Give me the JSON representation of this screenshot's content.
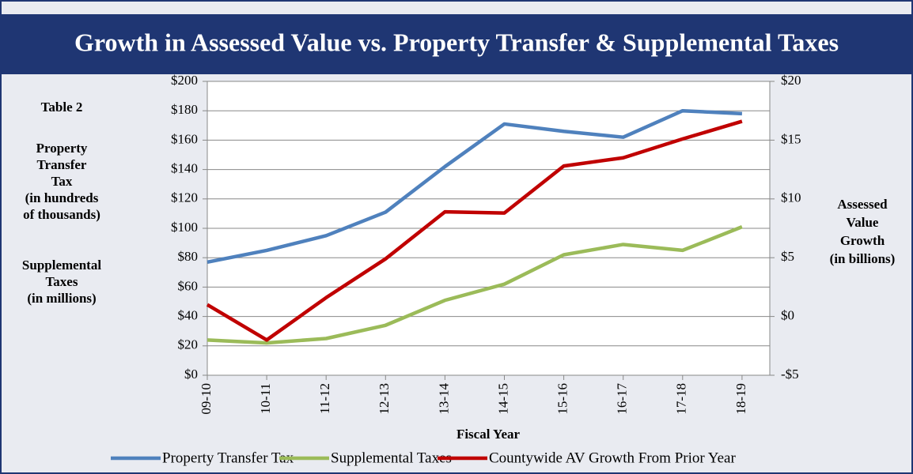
{
  "chart_data": {
    "type": "line",
    "title": "Growth in Assessed Value vs. Property Transfer & Supplemental Taxes",
    "table_label": "Table 2",
    "y_axis_label": [
      "Property",
      "Transfer",
      "Tax",
      "(in hundreds",
      "of thousands)",
      "Supplemental",
      "Taxes",
      "(in millions)"
    ],
    "y2_axis_label": [
      "Assessed",
      "Value",
      "Growth",
      "(in billions)"
    ],
    "x_axis_label": "Fiscal Year",
    "categories": [
      "09-10",
      "10-11",
      "11-12",
      "12-13",
      "13-14",
      "14-15",
      "15-16",
      "16-17",
      "17-18",
      "18-19"
    ],
    "series": [
      {
        "name": "Property Transfer Tax",
        "color": "#4f81bd",
        "values": [
          77,
          85,
          95,
          111,
          142,
          171,
          166,
          162,
          180,
          178
        ]
      },
      {
        "name": "Supplemental Taxes",
        "color": "#9bbb59",
        "values": [
          24,
          22,
          25,
          34,
          51,
          62,
          82,
          89,
          85,
          101
        ]
      },
      {
        "name": "Countywide AV Growth From Prior Year",
        "color": "#c00000",
        "axis": "y2",
        "values": [
          1.0,
          -2.0,
          1.6,
          4.9,
          8.9,
          8.8,
          12.8,
          13.5,
          15.1,
          16.6
        ]
      }
    ],
    "ylim": [
      0,
      200
    ],
    "yticks": [
      {
        "value": 0,
        "label": "$0"
      },
      {
        "value": 20,
        "label": "$20"
      },
      {
        "value": 40,
        "label": "$40"
      },
      {
        "value": 60,
        "label": "$60"
      },
      {
        "value": 80,
        "label": "$80"
      },
      {
        "value": 100,
        "label": "$100"
      },
      {
        "value": 120,
        "label": "$120"
      },
      {
        "value": 140,
        "label": "$140"
      },
      {
        "value": 160,
        "label": "$160"
      },
      {
        "value": 180,
        "label": "$180"
      },
      {
        "value": 200,
        "label": "$200"
      }
    ],
    "y2lim": [
      -5,
      20
    ],
    "y2ticks": [
      {
        "value": -5,
        "label": "-$5"
      },
      {
        "value": 0,
        "label": "$0"
      },
      {
        "value": 5,
        "label": "$5"
      },
      {
        "value": 10,
        "label": "$10"
      },
      {
        "value": 15,
        "label": "$15"
      },
      {
        "value": 20,
        "label": "$20"
      }
    ],
    "grid": true,
    "legend": "bottom"
  }
}
